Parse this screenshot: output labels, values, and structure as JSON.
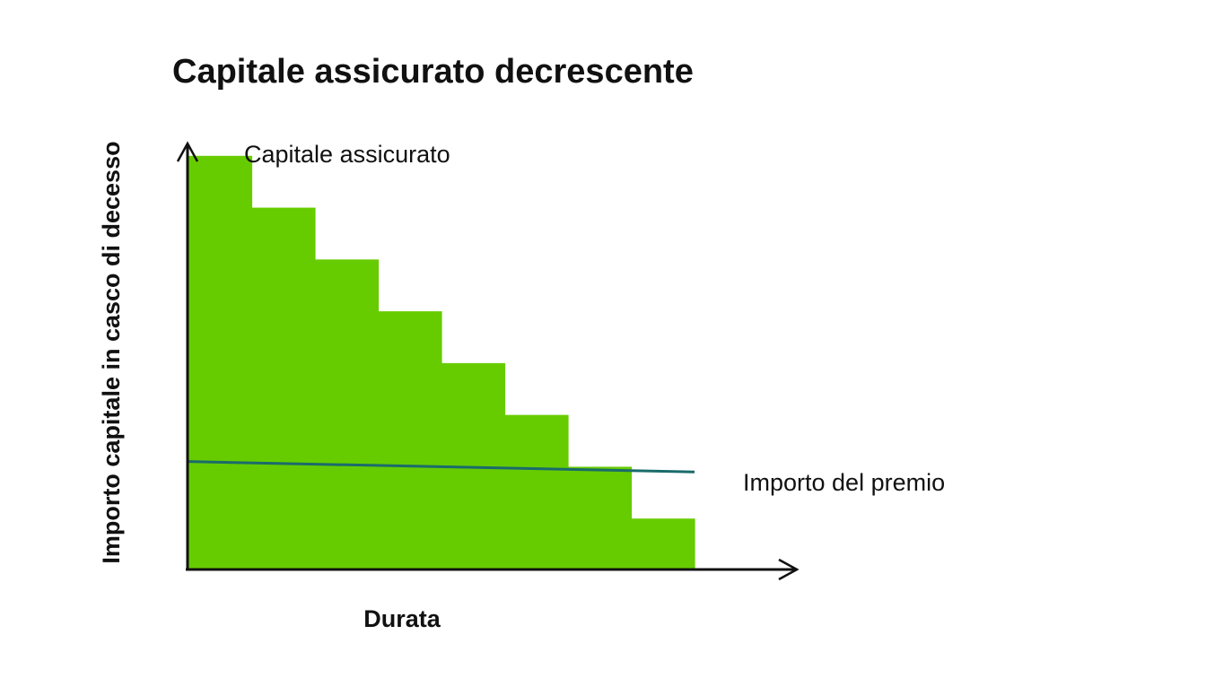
{
  "chart_data": {
    "type": "bar",
    "title": "Capitale assicurato decrescente",
    "xlabel": "Durata",
    "ylabel": "Importo capitale in casco di decesso",
    "series": [
      {
        "name": "Capitale assicurato",
        "type": "bar",
        "values": [
          8,
          7,
          6,
          5,
          4,
          3,
          2,
          1
        ],
        "color": "#66cc00"
      },
      {
        "name": "Importo del premio",
        "type": "line",
        "values": [
          2.1,
          1.9
        ],
        "color": "#1a6b6b"
      }
    ],
    "ylim": [
      0,
      9
    ],
    "grid": false,
    "legend": "none"
  }
}
